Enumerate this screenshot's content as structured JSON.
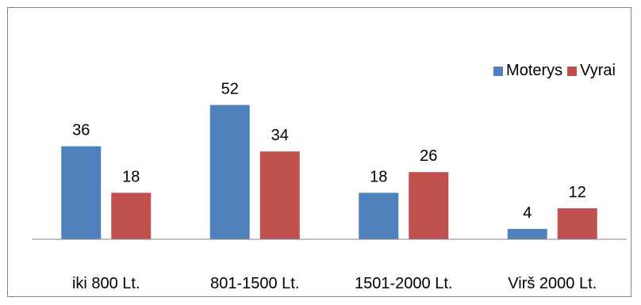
{
  "chart_data": {
    "type": "bar",
    "categories": [
      "iki 800 Lt.",
      "801-1500 Lt.",
      "1501-2000 Lt.",
      "Virš 2000 Lt."
    ],
    "series": [
      {
        "name": "Moterys",
        "values": [
          36,
          52,
          18,
          4
        ],
        "color": "#4F81BD"
      },
      {
        "name": "Vyrai",
        "values": [
          18,
          34,
          26,
          12
        ],
        "color": "#C0504D"
      }
    ],
    "data_labels": true,
    "legend": "top-right",
    "grid": false,
    "ylim": [
      0,
      60
    ]
  }
}
